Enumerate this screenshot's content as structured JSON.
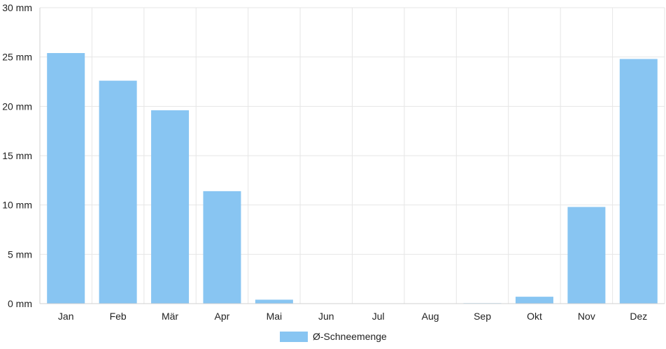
{
  "chart_data": {
    "type": "bar",
    "categories": [
      "Jan",
      "Feb",
      "Mär",
      "Apr",
      "Mai",
      "Jun",
      "Jul",
      "Aug",
      "Sep",
      "Okt",
      "Nov",
      "Dez"
    ],
    "series": [
      {
        "name": "Ø-Schneemenge",
        "values": [
          25.4,
          22.6,
          19.6,
          11.4,
          0.4,
          0,
          0,
          0,
          0.05,
          0.7,
          9.8,
          24.8
        ],
        "color": "#88c5f2"
      }
    ],
    "unit": "mm",
    "ylim": [
      0,
      30
    ],
    "yticks": [
      "0 mm",
      "5 mm",
      "10 mm",
      "15 mm",
      "20 mm",
      "25 mm",
      "30 mm"
    ],
    "ytick_values": [
      0,
      5,
      10,
      15,
      20,
      25,
      30
    ],
    "grid": true,
    "legend": {
      "position": "bottom-center",
      "label": "Ø-Schneemenge"
    }
  }
}
